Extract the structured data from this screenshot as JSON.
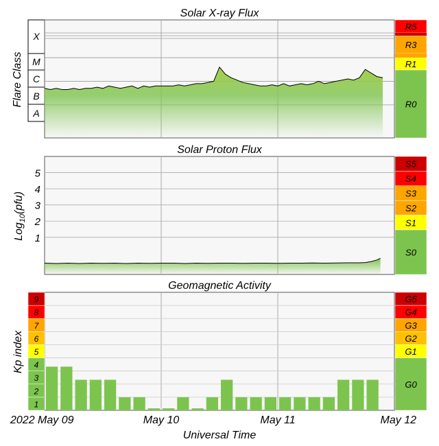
{
  "xaxis": {
    "label": "Universal Time",
    "ticks": [
      "2022 May 09",
      "May 10",
      "May 11",
      "May 12"
    ],
    "range_days": [
      0,
      3
    ]
  },
  "colors": {
    "panel_bg": "#f7f7f7",
    "green": "#7dc44f",
    "yellow": "#ffff00",
    "orange": "#ffa500",
    "red": "#ff0000",
    "darkred": "#cc0000",
    "line": "#000000"
  },
  "chart_data": [
    {
      "type": "area",
      "title": "Solar X-ray Flux",
      "ylabel": "Flare Class",
      "scale": "log",
      "y_classes": [
        "A",
        "B",
        "C",
        "M",
        "X"
      ],
      "xlim": [
        0,
        3
      ],
      "x": [
        0.0,
        0.05,
        0.1,
        0.15,
        0.2,
        0.25,
        0.3,
        0.35,
        0.4,
        0.45,
        0.5,
        0.55,
        0.6,
        0.65,
        0.7,
        0.75,
        0.8,
        0.85,
        0.9,
        0.95,
        1.0,
        1.05,
        1.1,
        1.15,
        1.2,
        1.25,
        1.3,
        1.35,
        1.4,
        1.45,
        1.5,
        1.55,
        1.6,
        1.65,
        1.7,
        1.75,
        1.8,
        1.85,
        1.9,
        1.95,
        2.0,
        2.05,
        2.1,
        2.15,
        2.2,
        2.25,
        2.3,
        2.35,
        2.4,
        2.45,
        2.5,
        2.55,
        2.6,
        2.65,
        2.7,
        2.75,
        2.8,
        2.85,
        2.9
      ],
      "y_log_flux": [
        -6.3,
        -6.35,
        -6.3,
        -6.35,
        -6.35,
        -6.3,
        -6.35,
        -6.3,
        -6.3,
        -6.25,
        -6.3,
        -6.2,
        -6.25,
        -6.3,
        -6.25,
        -6.2,
        -6.3,
        -6.2,
        -6.25,
        -6.2,
        -6.2,
        -6.2,
        -6.2,
        -6.15,
        -6.2,
        -6.15,
        -6.1,
        -6.1,
        -6.05,
        -6.0,
        -5.4,
        -5.7,
        -5.85,
        -5.95,
        -6.05,
        -6.1,
        -6.15,
        -6.2,
        -6.2,
        -6.15,
        -6.2,
        -6.1,
        -6.2,
        -6.15,
        -6.1,
        -6.15,
        -6.1,
        -6.0,
        -6.1,
        -6.05,
        -6.0,
        -5.95,
        -5.9,
        -5.95,
        -5.85,
        -5.5,
        -5.65,
        -5.8,
        -5.85
      ],
      "scale_labels": [
        "R5",
        "R3",
        "R1",
        "R0"
      ]
    },
    {
      "type": "area",
      "title": "Solar Proton Flux",
      "ylabel": "Log10(pfu)",
      "ylabel_main": "Log",
      "ylabel_sub": "10",
      "ylabel_paren": "(pfu)",
      "yticks": [
        "1",
        "2",
        "3",
        "4",
        "5"
      ],
      "ylim": [
        -1.3,
        6
      ],
      "x": [
        0.0,
        0.1,
        0.2,
        0.3,
        0.4,
        0.5,
        0.6,
        0.7,
        0.8,
        0.9,
        1.0,
        1.1,
        1.2,
        1.3,
        1.4,
        1.5,
        1.6,
        1.7,
        1.8,
        1.9,
        2.0,
        2.1,
        2.2,
        2.3,
        2.4,
        2.5,
        2.6,
        2.7,
        2.75,
        2.8,
        2.85,
        2.88
      ],
      "y": [
        -0.6,
        -0.62,
        -0.6,
        -0.62,
        -0.6,
        -0.61,
        -0.6,
        -0.62,
        -0.6,
        -0.61,
        -0.6,
        -0.6,
        -0.62,
        -0.6,
        -0.61,
        -0.6,
        -0.6,
        -0.61,
        -0.6,
        -0.6,
        -0.61,
        -0.6,
        -0.6,
        -0.59,
        -0.6,
        -0.59,
        -0.58,
        -0.58,
        -0.56,
        -0.5,
        -0.4,
        -0.3
      ],
      "scale_labels": [
        "S5",
        "S4",
        "S3",
        "S2",
        "S1",
        "S0"
      ]
    },
    {
      "type": "bar",
      "title": "Geomagnetic Activity",
      "ylabel": "Kp index",
      "ylim": [
        0,
        9
      ],
      "yticks": [
        "1",
        "2",
        "3",
        "4",
        "5",
        "6",
        "7",
        "8",
        "9"
      ],
      "bar_width_days": 0.125,
      "bar_start_days": [
        0,
        0.125,
        0.25,
        0.375,
        0.5,
        0.625,
        0.75,
        0.875,
        1.0,
        1.125,
        1.25,
        1.375,
        1.5,
        1.625,
        1.75,
        1.875,
        2.0,
        2.125,
        2.25,
        2.375,
        2.5,
        2.625,
        2.75,
        2.875
      ],
      "values": [
        3.33,
        3.33,
        2.33,
        2.33,
        2.33,
        1.0,
        1.0,
        0.0,
        0.0,
        1.0,
        0.0,
        1.0,
        2.33,
        1.0,
        1.0,
        1.0,
        1.0,
        1.0,
        1.0,
        1.0,
        2.33,
        2.33,
        2.33,
        null
      ],
      "scale_labels": [
        "G5",
        "G4",
        "G3",
        "G2",
        "G1",
        "G0"
      ]
    }
  ]
}
